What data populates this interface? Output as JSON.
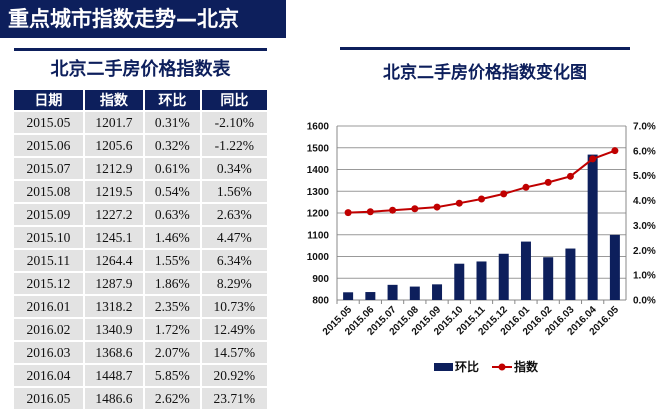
{
  "page_title": "重点城市指数走势—北京",
  "table": {
    "title": "北京二手房价格指数表",
    "headers": [
      "日期",
      "指数",
      "环比",
      "同比"
    ],
    "rows": [
      [
        "2015.05",
        "1201.7",
        "0.31%",
        "-2.10%"
      ],
      [
        "2015.06",
        "1205.6",
        "0.32%",
        "-1.22%"
      ],
      [
        "2015.07",
        "1212.9",
        "0.61%",
        "0.34%"
      ],
      [
        "2015.08",
        "1219.5",
        "0.54%",
        "1.56%"
      ],
      [
        "2015.09",
        "1227.2",
        "0.63%",
        "2.63%"
      ],
      [
        "2015.10",
        "1245.1",
        "1.46%",
        "4.47%"
      ],
      [
        "2015.11",
        "1264.4",
        "1.55%",
        "6.34%"
      ],
      [
        "2015.12",
        "1287.9",
        "1.86%",
        "8.29%"
      ],
      [
        "2016.01",
        "1318.2",
        "2.35%",
        "10.73%"
      ],
      [
        "2016.02",
        "1340.9",
        "1.72%",
        "12.49%"
      ],
      [
        "2016.03",
        "1368.6",
        "2.07%",
        "14.57%"
      ],
      [
        "2016.04",
        "1448.7",
        "5.85%",
        "20.92%"
      ],
      [
        "2016.05",
        "1486.6",
        "2.62%",
        "23.71%"
      ]
    ]
  },
  "chart_data": {
    "type": "bar+line",
    "title": "北京二手房价格指数变化图",
    "categories": [
      "2015.05",
      "2015.06",
      "2015.07",
      "2015.08",
      "2015.09",
      "2015.10",
      "2015.11",
      "2015.12",
      "2016.01",
      "2016.02",
      "2016.03",
      "2016.04",
      "2016.05"
    ],
    "series": [
      {
        "name": "环比",
        "type": "bar",
        "axis": "right",
        "color": "#0d1f5c",
        "values": [
          0.31,
          0.32,
          0.61,
          0.54,
          0.63,
          1.46,
          1.55,
          1.86,
          2.35,
          1.72,
          2.07,
          5.85,
          2.62
        ]
      },
      {
        "name": "指数",
        "type": "line",
        "axis": "left",
        "color": "#c00000",
        "values": [
          1201.7,
          1205.6,
          1212.9,
          1219.5,
          1227.2,
          1245.1,
          1264.4,
          1287.9,
          1318.2,
          1340.9,
          1368.6,
          1448.7,
          1486.6
        ]
      }
    ],
    "left_axis": {
      "min": 800,
      "max": 1600,
      "ticks": [
        "800",
        "900",
        "1000",
        "1100",
        "1200",
        "1300",
        "1400",
        "1500",
        "1600"
      ]
    },
    "right_axis": {
      "min": 0,
      "max": 7,
      "ticks": [
        "0.0%",
        "1.0%",
        "2.0%",
        "3.0%",
        "4.0%",
        "5.0%",
        "6.0%",
        "7.0%"
      ]
    },
    "grid": true,
    "legend": "bottom"
  }
}
